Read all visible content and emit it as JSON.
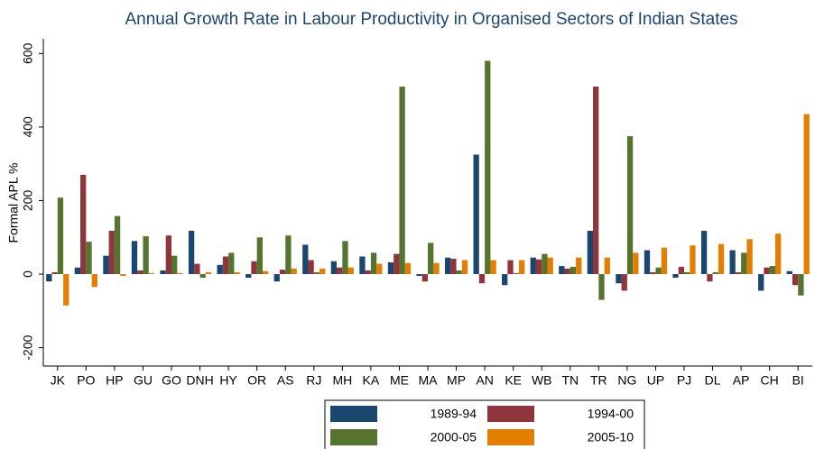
{
  "chart_data": {
    "type": "bar",
    "title": "Annual Growth Rate in Labour Productivity in Organised Sectors of Indian States",
    "y_label": "Formal APL %",
    "categories": [
      "JK",
      "PO",
      "HP",
      "GU",
      "GO",
      "DNH",
      "HY",
      "OR",
      "AS",
      "RJ",
      "MH",
      "KA",
      "ME",
      "MA",
      "MP",
      "AN",
      "KE",
      "WB",
      "TN",
      "TR",
      "NG",
      "UP",
      "PJ",
      "DL",
      "AP",
      "CH",
      "BI"
    ],
    "series": [
      {
        "name": "1989-94",
        "color": "#1a476f",
        "values": [
          -20,
          18,
          50,
          90,
          10,
          118,
          25,
          -10,
          -20,
          80,
          35,
          48,
          32,
          -5,
          45,
          325,
          -30,
          45,
          22,
          118,
          -25,
          65,
          -10,
          118,
          65,
          -45,
          8
        ]
      },
      {
        "name": "1994-00",
        "color": "#90353b",
        "values": [
          5,
          270,
          118,
          10,
          105,
          28,
          48,
          35,
          12,
          38,
          18,
          10,
          55,
          -20,
          42,
          -25,
          38,
          40,
          15,
          510,
          -45,
          5,
          20,
          -20,
          5,
          18,
          -30
        ]
      },
      {
        "name": "2000-05",
        "color": "#55752f",
        "values": [
          208,
          88,
          158,
          103,
          50,
          -10,
          58,
          100,
          105,
          5,
          90,
          58,
          510,
          85,
          10,
          580,
          3,
          55,
          20,
          -70,
          375,
          18,
          5,
          5,
          58,
          22,
          -58
        ]
      },
      {
        "name": "2005-10",
        "color": "#e37e00",
        "values": [
          -85,
          -35,
          -5,
          3,
          3,
          5,
          5,
          8,
          15,
          15,
          18,
          28,
          30,
          30,
          38,
          38,
          38,
          45,
          45,
          45,
          58,
          72,
          78,
          82,
          95,
          110,
          435
        ]
      }
    ],
    "ylim": [
      -250,
      640
    ],
    "yticks": [
      -200,
      0,
      200,
      400,
      600
    ],
    "grid": false,
    "legend": "bottom"
  }
}
